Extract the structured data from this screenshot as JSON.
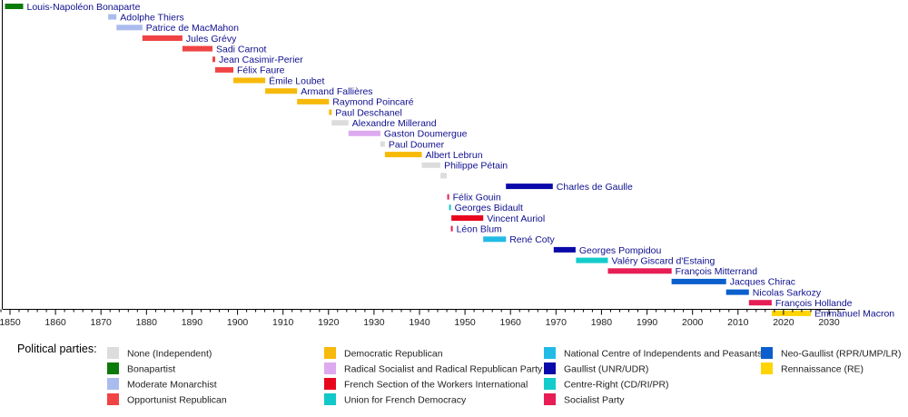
{
  "chart_data": {
    "type": "timeline",
    "title": "",
    "xlabel": "",
    "ylabel": "",
    "xlim": [
      1848,
      2034
    ],
    "x_ticks": [
      1850,
      1860,
      1870,
      1880,
      1890,
      1900,
      1910,
      1920,
      1930,
      1940,
      1950,
      1960,
      1970,
      1980,
      1990,
      2000,
      2010,
      2020,
      2030
    ],
    "minor_tick_step": 2,
    "grid": false,
    "legend_title": "Political parties:",
    "legend_position": "bottom",
    "parties": [
      {
        "key": "none",
        "name": "None (Independent)",
        "color": "#dcdcdc"
      },
      {
        "key": "bonapartist",
        "name": "Bonapartist",
        "color": "#0a7a0a"
      },
      {
        "key": "moderate_monarchist",
        "name": "Moderate Monarchist",
        "color": "#aabbee"
      },
      {
        "key": "opportunist_republican",
        "name": "Opportunist Republican",
        "color": "#f04444"
      },
      {
        "key": "democratic_republican",
        "name": "Democratic Republican",
        "color": "#f7b90a"
      },
      {
        "key": "radical",
        "name": "Radical Socialist and Radical Republican Party",
        "color": "#ddaaf0"
      },
      {
        "key": "sfio",
        "name": "French Section of the Workers International",
        "color": "#e8061e"
      },
      {
        "key": "udf",
        "name": "Union for French Democracy",
        "color": "#12c8c8"
      },
      {
        "key": "cnip",
        "name": "National Centre of Independents and Peasants",
        "color": "#22bbe6"
      },
      {
        "key": "gaullist",
        "name": "Gaullist (UNR/UDR)",
        "color": "#0a0aaa"
      },
      {
        "key": "centre_right",
        "name": "Centre-Right (CD/RI/PR)",
        "color": "#14cccc"
      },
      {
        "key": "socialist",
        "name": "Socialist Party",
        "color": "#e61e55"
      },
      {
        "key": "neo_gaullist",
        "name": "Neo-Gaullist (RPR/UMP/LR)",
        "color": "#0a5fcc"
      },
      {
        "key": "renaissance",
        "name": "Rennaissance (RE)",
        "color": "#ffd400"
      }
    ],
    "presidents": [
      {
        "name": "Louis-Napoléon Bonaparte",
        "start": 1848.9,
        "end": 1852.9,
        "party": "bonapartist"
      },
      {
        "name": "Adolphe Thiers",
        "start": 1871.6,
        "end": 1873.4,
        "party": "moderate_monarchist"
      },
      {
        "name": "Patrice de MacMahon",
        "start": 1873.4,
        "end": 1879.1,
        "party": "moderate_monarchist"
      },
      {
        "name": "Jules Grévy",
        "start": 1879.1,
        "end": 1887.9,
        "party": "opportunist_republican"
      },
      {
        "name": "Sadi Carnot",
        "start": 1887.9,
        "end": 1894.5,
        "party": "opportunist_republican"
      },
      {
        "name": "Jean Casimir-Perier",
        "start": 1894.5,
        "end": 1895.1,
        "party": "opportunist_republican"
      },
      {
        "name": "Félix Faure",
        "start": 1895.1,
        "end": 1899.1,
        "party": "opportunist_republican"
      },
      {
        "name": "Émile Loubet",
        "start": 1899.1,
        "end": 1906.1,
        "party": "democratic_republican"
      },
      {
        "name": "Armand Fallières",
        "start": 1906.1,
        "end": 1913.1,
        "party": "democratic_republican"
      },
      {
        "name": "Raymond Poincaré",
        "start": 1913.1,
        "end": 1920.1,
        "party": "democratic_republican"
      },
      {
        "name": "Paul Deschanel",
        "start": 1920.1,
        "end": 1920.7,
        "party": "democratic_republican"
      },
      {
        "name": "Alexandre Millerand",
        "start": 1920.7,
        "end": 1924.4,
        "party": "none"
      },
      {
        "name": "Gaston Doumergue",
        "start": 1924.4,
        "end": 1931.4,
        "party": "radical"
      },
      {
        "name": "Paul Doumer",
        "start": 1931.4,
        "end": 1932.4,
        "party": "none"
      },
      {
        "name": "Albert Lebrun",
        "start": 1932.4,
        "end": 1940.5,
        "party": "democratic_republican"
      },
      {
        "name": "Philippe Pétain",
        "start": 1940.5,
        "end": 1944.6,
        "party": "none"
      },
      {
        "name": "",
        "start": 1944.6,
        "end": 1946.0,
        "party": "none"
      },
      {
        "name": "Charles de Gaulle",
        "start": 1959.0,
        "end": 1969.3,
        "party": "gaullist"
      },
      {
        "name": "Félix Gouin",
        "start": 1946.1,
        "end": 1946.5,
        "party": "socialist"
      },
      {
        "name": "Georges Bidault",
        "start": 1946.5,
        "end": 1946.9,
        "party": "udf"
      },
      {
        "name": "Vincent Auriol",
        "start": 1947.0,
        "end": 1954.0,
        "party": "sfio"
      },
      {
        "name": "Léon Blum",
        "start": 1946.9,
        "end": 1947.0,
        "party": "socialist"
      },
      {
        "name": "René Coty",
        "start": 1954.0,
        "end": 1959.0,
        "party": "cnip"
      },
      {
        "name": "Georges Pompidou",
        "start": 1969.5,
        "end": 1974.3,
        "party": "gaullist"
      },
      {
        "name": "Valéry Giscard d'Estaing",
        "start": 1974.4,
        "end": 1981.4,
        "party": "centre_right"
      },
      {
        "name": "François Mitterrand",
        "start": 1981.4,
        "end": 1995.4,
        "party": "socialist"
      },
      {
        "name": "Jacques Chirac",
        "start": 1995.4,
        "end": 2007.4,
        "party": "neo_gaullist"
      },
      {
        "name": "Nicolas Sarkozy",
        "start": 2007.4,
        "end": 2012.4,
        "party": "neo_gaullist"
      },
      {
        "name": "François Hollande",
        "start": 2012.4,
        "end": 2017.4,
        "party": "socialist"
      },
      {
        "name": "Emmanuel Macron",
        "start": 2017.4,
        "end": 2026.0,
        "party": "renaissance"
      }
    ]
  }
}
